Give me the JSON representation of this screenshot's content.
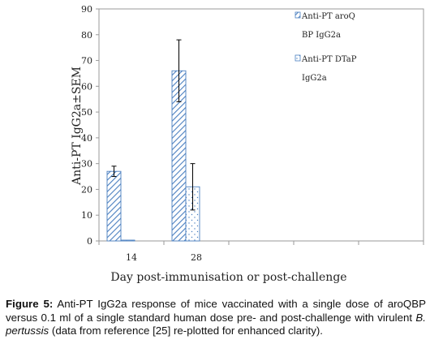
{
  "chart_data": {
    "type": "bar",
    "categories": [
      "14",
      "28"
    ],
    "series": [
      {
        "name": "Anti-PT aroQ BP IgG2a",
        "values": [
          27,
          66
        ],
        "errors": [
          2,
          12
        ],
        "pattern": "diagonal-hatch"
      },
      {
        "name": "Anti-PT DTaP IgG2a",
        "values": [
          0.3,
          21
        ],
        "errors": [
          0.1,
          9
        ],
        "pattern": "dots"
      }
    ],
    "legend_lines": [
      [
        "Anti-PT aroQ",
        "BP IgG2a"
      ],
      [
        "Anti-PT DTaP",
        "IgG2a"
      ]
    ],
    "xlabel": "Day post-immunisation or post-challenge",
    "ylabel": "Anti-PT IgG2a±SEM",
    "ylim": [
      0,
      90
    ],
    "yticks": [
      "0",
      "10",
      "20",
      "30",
      "40",
      "50",
      "60",
      "70",
      "80",
      "90"
    ],
    "grid": false,
    "legend_position": "top-right"
  },
  "caption": {
    "label": "Figure 5:",
    "text_before_italic": "Anti-PT IgG2a response of mice vaccinated with a single dose of aroQBP versus 0.1 ml of a single standard human dose pre- and post-challenge with virulent",
    "italic": "B. pertussis",
    "text_after_italic": "(data from reference [25] re-plotted for enhanced clarity)."
  }
}
